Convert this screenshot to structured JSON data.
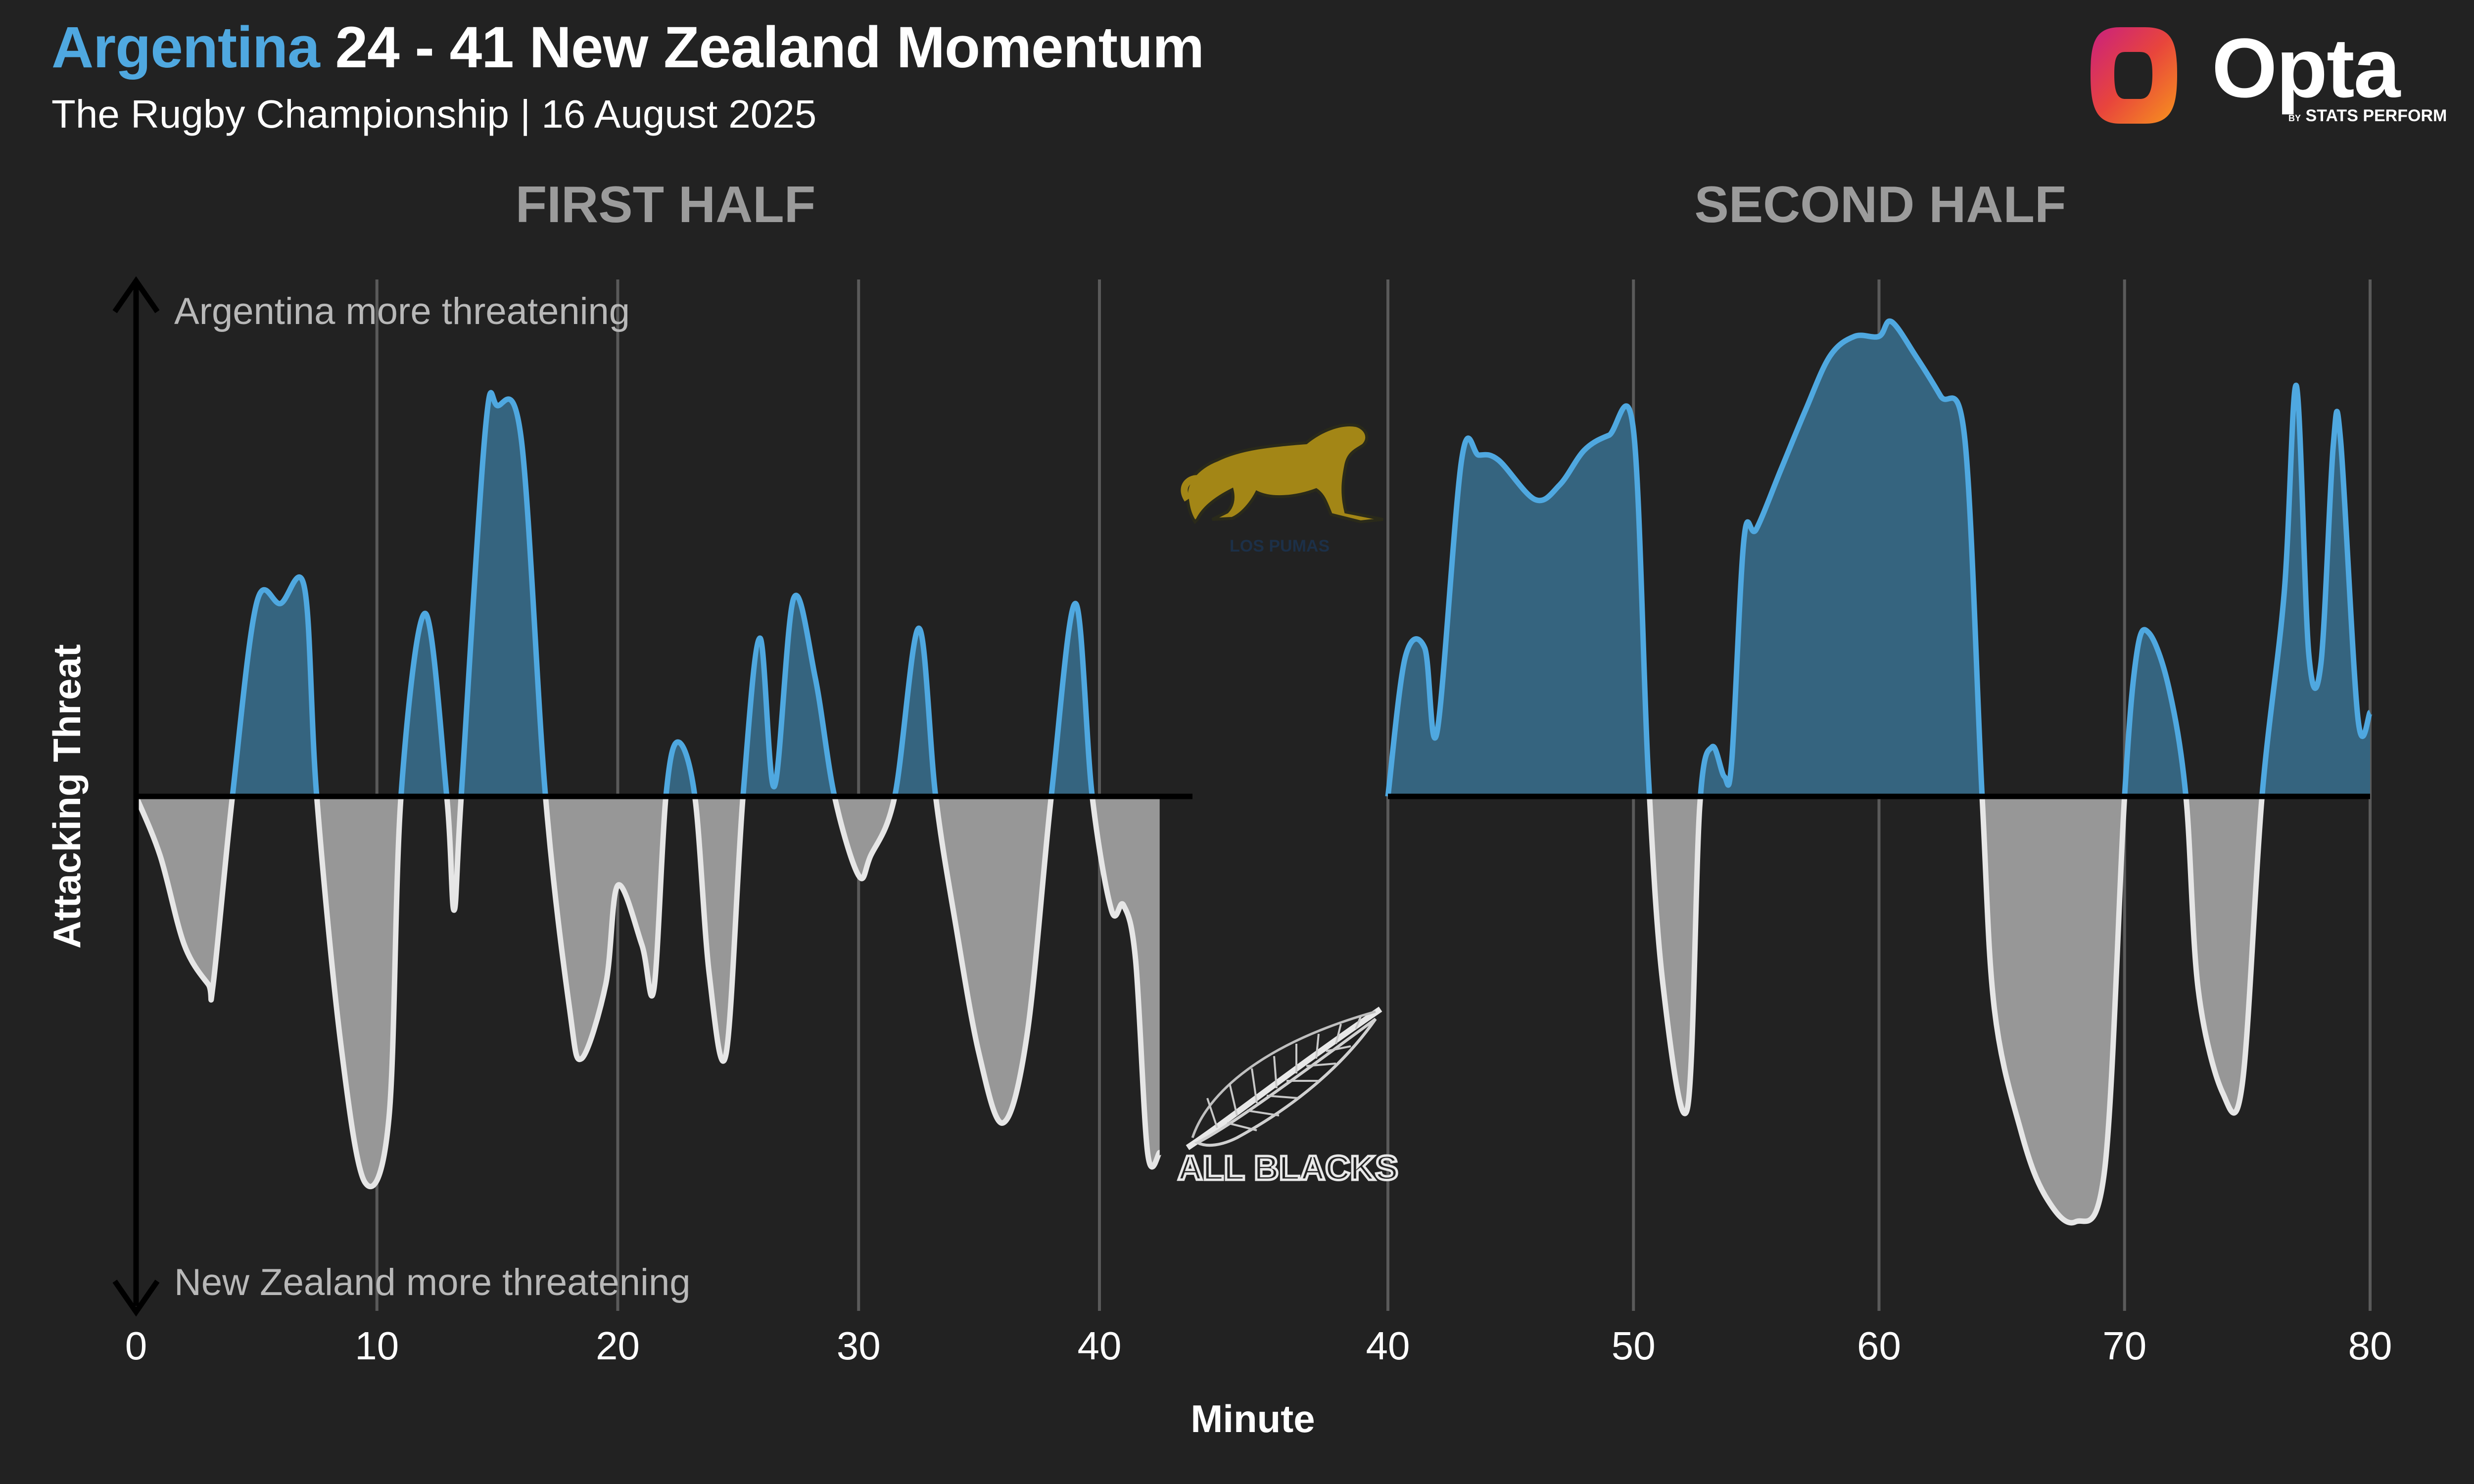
{
  "header": {
    "title_team1": "Argentina",
    "title_rest": "24 - 41 New Zealand Momentum",
    "subtitle": "The Rugby Championship | 16 August 2025",
    "brand": "Opta",
    "brand_by": "BY",
    "brand_sub": "STATS PERFORM"
  },
  "colors": {
    "argentina": "#4fa8e0",
    "argentina_fill": "#35647f",
    "new_zealand": "#e6e6e6",
    "new_zealand_fill": "#979797",
    "background": "#222222"
  },
  "icons": {
    "argentina_logo": "jaguar-logo",
    "new_zealand_logo": "silver-fern-logo",
    "nz_logo_text": "ALL BLACKS"
  },
  "chart_data": {
    "type": "area",
    "ylabel": "Attacking Threat",
    "xlabel": "Minute",
    "annotation_top": "Argentina more threatening",
    "annotation_bottom": "New Zealand more threatening",
    "ylim": [
      -1.05,
      1.05
    ],
    "panels": [
      {
        "title": "FIRST HALF",
        "xlim": [
          0,
          43
        ],
        "xticks": [
          0,
          10,
          20,
          30,
          40
        ],
        "series": [
          {
            "x": [
              0,
              1,
              2,
              3,
              3.2,
              4,
              5,
              6,
              7,
              7.5,
              8.5,
              9.5,
              10.5,
              11,
              12,
              12.9,
              13.2,
              13.5,
              14.5,
              15,
              16,
              17,
              18,
              18.5,
              19.5,
              20,
              21,
              21.5,
              22,
              22.5,
              23.2,
              23.8,
              24.5,
              25.2,
              25.9,
              26.5,
              27.3,
              28.2,
              29,
              30,
              30.5,
              31.5,
              32.5,
              33.2,
              34,
              35,
              36,
              37,
              38,
              39,
              39.7,
              40.5,
              41,
              41.5,
              42,
              42.5
            ],
            "y": [
              0,
              -0.12,
              -0.3,
              -0.38,
              -0.38,
              0,
              0.39,
              0.39,
              0.42,
              0,
              -0.5,
              -0.78,
              -0.65,
              0,
              0.37,
              0,
              -0.23,
              0,
              0.74,
              0.79,
              0.72,
              0,
              -0.43,
              -0.53,
              -0.38,
              -0.18,
              -0.3,
              -0.39,
              0,
              0.11,
              0,
              -0.36,
              -0.52,
              0,
              0.32,
              0.02,
              0.4,
              0.24,
              0,
              -0.16,
              -0.12,
              0,
              0.34,
              0,
              -0.25,
              -0.52,
              -0.66,
              -0.48,
              0,
              0.39,
              0,
              -0.23,
              -0.22,
              -0.33,
              -0.72,
              -0.72
            ]
          }
        ]
      },
      {
        "title": "SECOND HALF",
        "xlim": [
          40,
          80
        ],
        "xticks": [
          40,
          50,
          60,
          70,
          80
        ],
        "series": [
          {
            "x": [
              40,
              40.7,
              41.5,
              42,
              43,
              43.7,
              44.5,
              46,
              47,
              48,
              49,
              50,
              50.6,
              51.2,
              52.2,
              52.7,
              53.2,
              53.7,
              54,
              54.5,
              55,
              56,
              57,
              58,
              59,
              60,
              60.5,
              61.5,
              62.5,
              63.5,
              64.2,
              64.7,
              65.8,
              66.8,
              68,
              69.2,
              70,
              70.5,
              71,
              71.8,
              72.5,
              73,
              74,
              74.8,
              75.6,
              76.5,
              77,
              77.5,
              78,
              78.5,
              78.8,
              79.5,
              80
            ],
            "y": [
              0,
              0.28,
              0.3,
              0.13,
              0.68,
              0.69,
              0.68,
              0.6,
              0.63,
              0.7,
              0.73,
              0.74,
              0.05,
              -0.38,
              -0.63,
              -0.02,
              0.1,
              0.04,
              0.07,
              0.52,
              0.54,
              0.66,
              0.78,
              0.89,
              0.93,
              0.93,
              0.96,
              0.89,
              0.81,
              0.72,
              0,
              -0.43,
              -0.68,
              -0.81,
              -0.86,
              -0.75,
              0,
              0.29,
              0.33,
              0.22,
              0,
              -0.39,
              -0.6,
              -0.58,
              0,
              0.41,
              0.83,
              0.29,
              0.27,
              0.71,
              0.72,
              0.16,
              0.17
            ]
          }
        ]
      }
    ]
  }
}
